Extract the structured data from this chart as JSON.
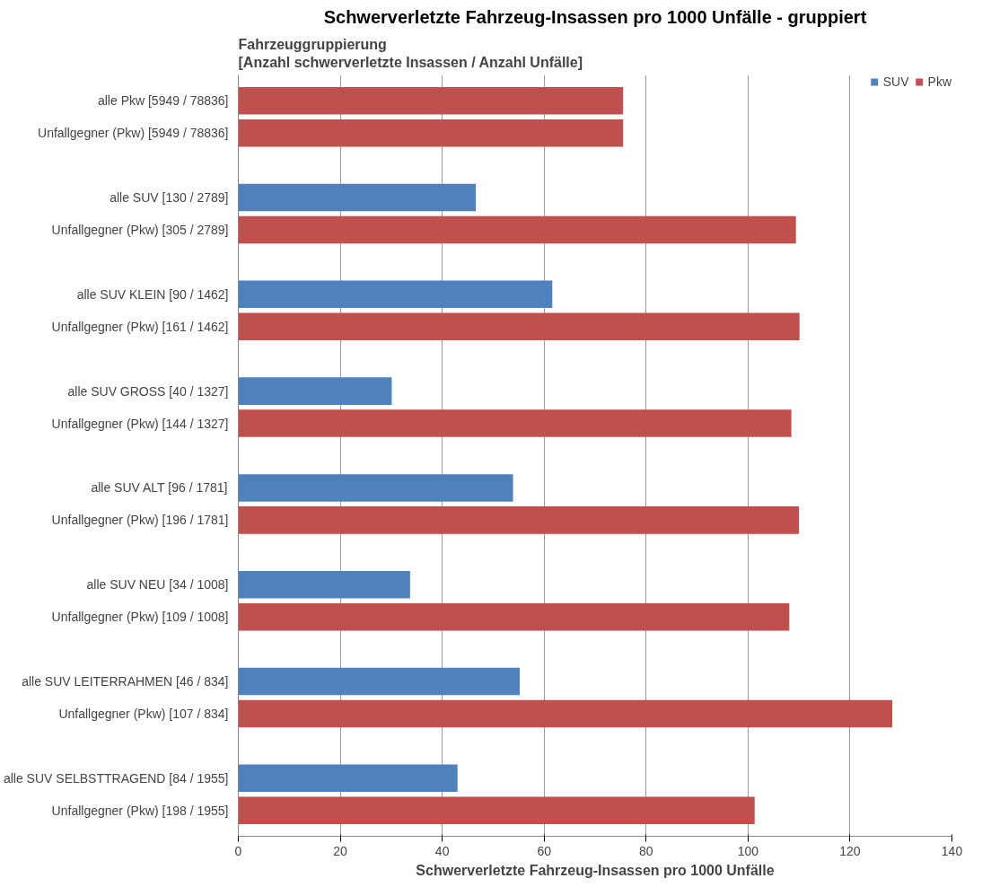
{
  "chart_data": {
    "type": "bar",
    "orientation": "horizontal",
    "title": "Schwerverletzte Fahrzeug-Insassen pro 1000 Unfälle - gruppiert",
    "xlabel": "Schwerverletzte Fahrzeug-Insassen pro 1000 Unfälle",
    "ylabel": "Fahrzeuggruppierung\n[Anzahl schwerverletzte Insassen / Anzahl Unfälle]",
    "categories": [
      "alle Pkw [5949 / 78836]",
      "Unfallgegner (Pkw) [5949 / 78836]",
      "alle SUV [130 / 2789]",
      "Unfallgegner (Pkw) [305 / 2789]",
      "alle SUV KLEIN [90 / 1462]",
      "Unfallgegner (Pkw) [161 / 1462]",
      "alle SUV GROSS [40 / 1327]",
      "Unfallgegner (Pkw) [144 / 1327]",
      "alle SUV ALT [96 / 1781]",
      "Unfallgegner (Pkw) [196 / 1781]",
      "alle SUV NEU [34 / 1008]",
      "Unfallgegner (Pkw) [109 / 1008]",
      "alle SUV LEITERRAHMEN [46 / 834]",
      "Unfallgegner (Pkw) [107 / 834]",
      "alle SUV SELBSTTRAGEND [84 / 1955]",
      "Unfallgegner (Pkw) [198 / 1955]"
    ],
    "series": [
      {
        "name": "SUV",
        "color": "#4f81bd",
        "values": [
          null,
          null,
          46.6,
          null,
          61.6,
          null,
          30.1,
          null,
          53.9,
          null,
          33.7,
          null,
          55.2,
          null,
          43.0,
          null
        ]
      },
      {
        "name": "Pkw",
        "color": "#c0504d",
        "values": [
          75.5,
          75.5,
          null,
          109.4,
          null,
          110.1,
          null,
          108.5,
          null,
          110.0,
          null,
          108.1,
          null,
          128.3,
          null,
          101.3
        ]
      }
    ],
    "xlim": [
      0,
      140
    ],
    "xticks": [
      0,
      20,
      40,
      60,
      80,
      100,
      120,
      140
    ],
    "grid": "x",
    "legend": "top right"
  }
}
